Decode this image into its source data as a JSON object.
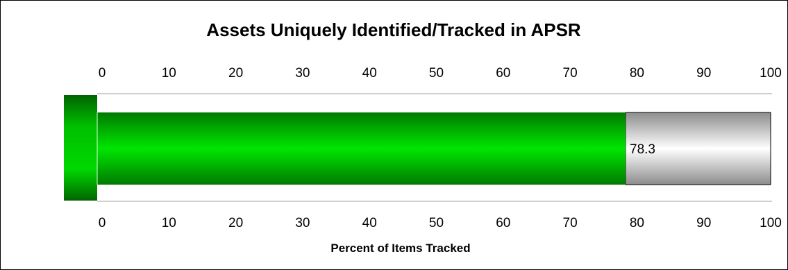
{
  "chart_data": {
    "type": "bar",
    "orientation": "horizontal",
    "title": "Assets Uniquely Identified/Tracked in APSR",
    "xlabel": "Percent of Items Tracked",
    "ylabel": "",
    "xlim": [
      0,
      100
    ],
    "ticks": [
      "0",
      "10",
      "20",
      "30",
      "40",
      "50",
      "60",
      "70",
      "80",
      "90",
      "100"
    ],
    "tick_values": [
      0,
      10,
      20,
      30,
      40,
      50,
      60,
      70,
      80,
      90,
      100
    ],
    "values": [
      78.3
    ],
    "data_label": "78.3",
    "remainder_to": 100,
    "grid": false,
    "legend": "none",
    "colors": {
      "fill": "#00cc00",
      "fill_dark": "#007a00",
      "remainder_light": "#ffffff",
      "remainder_dark": "#8c8c8c",
      "axis_line": "#a0a0a0"
    }
  }
}
